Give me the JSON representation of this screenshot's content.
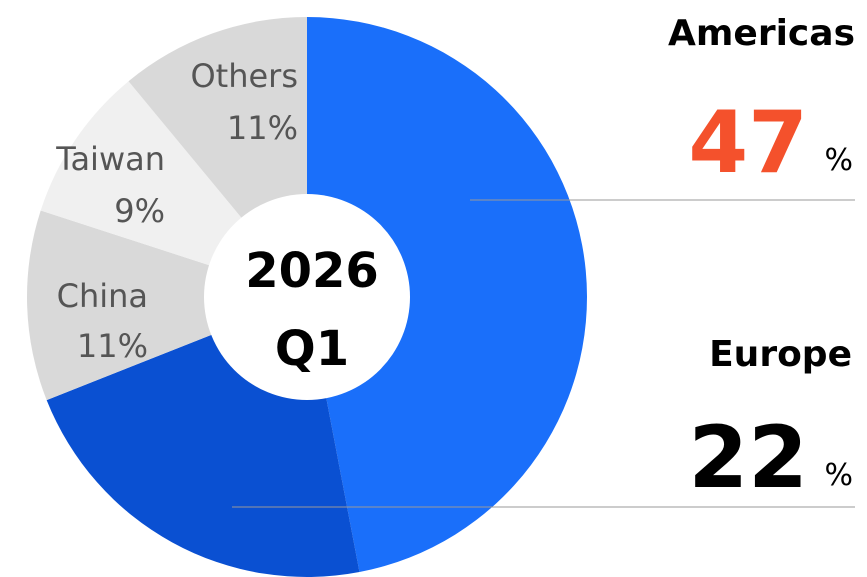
{
  "chart_data": {
    "type": "donut",
    "center_lines": [
      "2026",
      "Q1"
    ],
    "categories": [
      "Americas",
      "Europe",
      "China",
      "Taiwan",
      "Others"
    ],
    "values": [
      47,
      22,
      11,
      9,
      11
    ],
    "value_labels": [
      "47",
      "22",
      "11%",
      "9%",
      "11%"
    ],
    "unit": "%",
    "colors": [
      "#1a6ffa",
      "#0a50d2",
      "#d9d9d9",
      "#f0f0f0",
      "#d9d9d9"
    ],
    "callout_colors": [
      "#f4512c",
      "#000000"
    ]
  }
}
